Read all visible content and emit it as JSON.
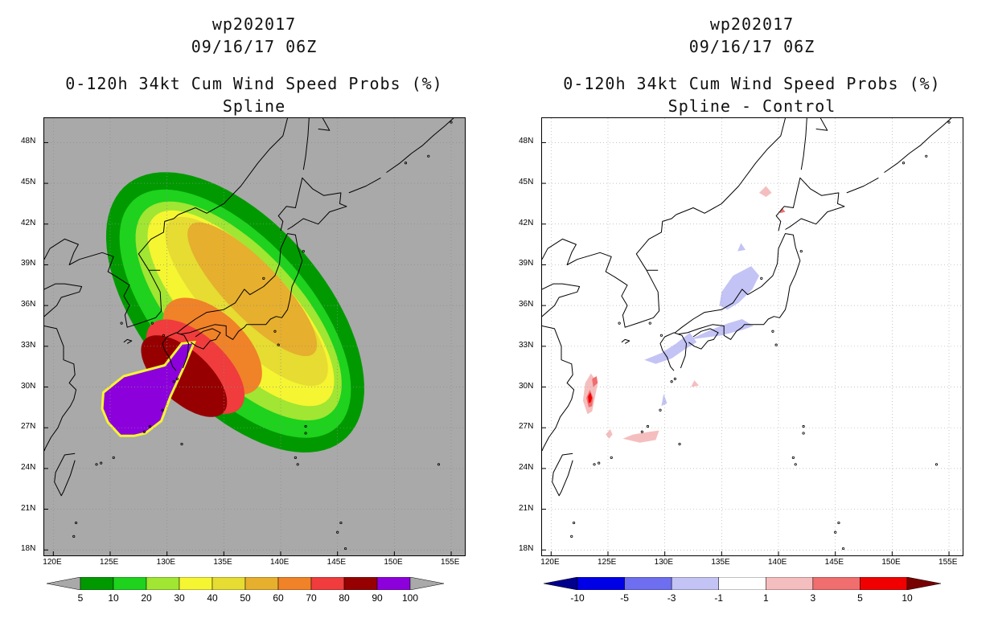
{
  "chart_data": [
    {
      "type": "heatmap",
      "title_lines": [
        "wp202017",
        "09/16/17 06Z",
        "0-120h 34kt Cum Wind Speed Probs (%)",
        "Spline"
      ],
      "x_ticks": [
        "120E",
        "125E",
        "130E",
        "135E",
        "140E",
        "145E",
        "150E",
        "155E"
      ],
      "y_ticks": [
        "48N",
        "45N",
        "42N",
        "39N",
        "36N",
        "33N",
        "30N",
        "27N",
        "24N",
        "21N",
        "18N"
      ],
      "x_values": [
        120,
        125,
        130,
        135,
        140,
        145,
        150,
        155
      ],
      "y_values": [
        48,
        45,
        42,
        39,
        36,
        33,
        30,
        27,
        24,
        21,
        18
      ],
      "xlim": [
        119.2,
        156.2
      ],
      "ylim": [
        17.6,
        49.8
      ],
      "background": "#a9a9a9",
      "colorbar": {
        "labels": [
          "5",
          "10",
          "20",
          "30",
          "40",
          "50",
          "60",
          "70",
          "80",
          "90",
          "100"
        ],
        "colors": [
          "#009a00",
          "#1ed21e",
          "#a0e632",
          "#f5f532",
          "#e6dc32",
          "#e6af2d",
          "#f08228",
          "#f03c3c",
          "#960000",
          "#8c00dc"
        ],
        "end_colors": [
          "#a9a9a9",
          "#a9a9a9"
        ]
      },
      "contours": [
        {
          "level": 5,
          "color": "#009a00",
          "ellipse": [
            136,
            35.5,
            7.3,
            13.5,
            50
          ]
        },
        {
          "level": 10,
          "color": "#1ed21e",
          "ellipse": [
            136,
            35.4,
            6.0,
            12.3,
            50
          ]
        },
        {
          "level": 20,
          "color": "#a0e632",
          "ellipse": [
            136.3,
            35.6,
            4.9,
            11.1,
            50
          ]
        },
        {
          "level": 30,
          "color": "#f5f532",
          "ellipse": [
            136.5,
            35.8,
            3.9,
            10.2,
            50
          ]
        },
        {
          "level": 40,
          "color": "#e6dc32",
          "ellipse": [
            137,
            36.3,
            3.0,
            9.0,
            50
          ]
        },
        {
          "level": 50,
          "color": "#e6af2d",
          "ellipse": [
            137.5,
            37.2,
            2.2,
            7.2,
            50
          ]
        },
        {
          "level": 60,
          "color": "#f08228",
          "ellipse": [
            134,
            33,
            2.6,
            5.0,
            55
          ]
        },
        {
          "level": 70,
          "color": "#f03c3c",
          "ellipse": [
            132.5,
            31.5,
            2.4,
            5.0,
            55
          ]
        },
        {
          "level": 80,
          "color": "#960000",
          "ellipse": [
            131.5,
            30.8,
            2.0,
            4.4,
            55
          ]
        }
      ],
      "core_region": {
        "level": 100,
        "color": "#8c00dc",
        "edge_color": "#f5f532",
        "points": [
          [
            125.3,
            30.2
          ],
          [
            126.2,
            30.8
          ],
          [
            129.8,
            31.6
          ],
          [
            131.3,
            33.2
          ],
          [
            132.4,
            33.3
          ],
          [
            131.5,
            31.5
          ],
          [
            130.3,
            29.3
          ],
          [
            129.5,
            27.5
          ],
          [
            128.1,
            26.6
          ],
          [
            127.1,
            26.4
          ],
          [
            125.9,
            26.4
          ],
          [
            124.8,
            27.4
          ],
          [
            124.3,
            28.4
          ],
          [
            124.4,
            29.6
          ]
        ]
      }
    },
    {
      "type": "heatmap",
      "title_lines": [
        "wp202017",
        "09/16/17 06Z",
        "0-120h 34kt Cum Wind Speed Probs (%)",
        "Spline - Control"
      ],
      "x_ticks": [
        "120E",
        "125E",
        "130E",
        "135E",
        "140E",
        "145E",
        "150E",
        "155E"
      ],
      "y_ticks": [
        "48N",
        "45N",
        "42N",
        "39N",
        "36N",
        "33N",
        "30N",
        "27N",
        "24N",
        "21N",
        "18N"
      ],
      "x_values": [
        120,
        125,
        130,
        135,
        140,
        145,
        150,
        155
      ],
      "y_values": [
        48,
        45,
        42,
        39,
        36,
        33,
        30,
        27,
        24,
        21,
        18
      ],
      "xlim": [
        119.2,
        156.2
      ],
      "ylim": [
        17.6,
        49.8
      ],
      "background": "#ffffff",
      "colorbar": {
        "labels": [
          "-10",
          "-5",
          "-3",
          "-1",
          "1",
          "3",
          "5",
          "10"
        ],
        "colors": [
          "#0000e6",
          "#6e6ef0",
          "#c3c3f5",
          "#ffffff",
          "#f5bebe",
          "#f06e6e",
          "#f00000"
        ],
        "end_colors": [
          "#00008c",
          "#780000"
        ]
      },
      "anomalies": [
        {
          "level": -1,
          "color": "#c3c3f5",
          "points": [
            [
              134.8,
              36.0
            ],
            [
              135.0,
              37.0
            ],
            [
              136.0,
              38.2
            ],
            [
              137.6,
              38.9
            ],
            [
              138.3,
              38.2
            ],
            [
              137.7,
              37.2
            ],
            [
              136.5,
              36.2
            ],
            [
              135.5,
              35.7
            ]
          ]
        },
        {
          "level": -1,
          "color": "#c3c3f5",
          "points": [
            [
              128.2,
              32.0
            ],
            [
              129.7,
              32.5
            ],
            [
              131.0,
              33.2
            ],
            [
              132.2,
              34.0
            ],
            [
              132.8,
              33.3
            ],
            [
              131.8,
              32.8
            ],
            [
              130.6,
              32.1
            ],
            [
              129.2,
              31.7
            ]
          ]
        },
        {
          "level": -1,
          "color": "#c3c3f5",
          "points": [
            [
              132.2,
              33.5
            ],
            [
              134.0,
              34.2
            ],
            [
              135.6,
              34.7
            ],
            [
              136.8,
              35.0
            ],
            [
              137.8,
              34.5
            ],
            [
              136.8,
              34.2
            ],
            [
              135.0,
              33.8
            ]
          ]
        },
        {
          "level": -1,
          "color": "#c3c3f5",
          "points": [
            [
              136.4,
              40.0
            ],
            [
              136.7,
              40.6
            ],
            [
              137.1,
              40.1
            ]
          ]
        },
        {
          "level": -1,
          "color": "#c3c3f5",
          "points": [
            [
              129.7,
              28.6
            ],
            [
              129.9,
              29.5
            ],
            [
              130.2,
              28.8
            ]
          ]
        },
        {
          "level": 1,
          "color": "#f5bebe",
          "points": [
            [
              123.2,
              28.0
            ],
            [
              122.8,
              29.0
            ],
            [
              123.0,
              30.3
            ],
            [
              123.5,
              31.0
            ],
            [
              124.1,
              30.3
            ],
            [
              123.8,
              29.0
            ],
            [
              123.6,
              28.2
            ]
          ]
        },
        {
          "level": 3,
          "color": "#f06e6e",
          "points": [
            [
              123.3,
              28.5
            ],
            [
              123.1,
              29.2
            ],
            [
              123.4,
              29.8
            ],
            [
              123.7,
              29.2
            ],
            [
              123.6,
              28.6
            ]
          ]
        },
        {
          "level": 3,
          "color": "#f06e6e",
          "points": [
            [
              123.7,
              30.0
            ],
            [
              123.6,
              30.6
            ],
            [
              124.0,
              30.8
            ],
            [
              124.1,
              30.3
            ]
          ]
        },
        {
          "level": 5,
          "color": "#f00000",
          "points": [
            [
              123.3,
              28.8
            ],
            [
              123.25,
              29.3
            ],
            [
              123.45,
              29.6
            ],
            [
              123.6,
              29.2
            ],
            [
              123.5,
              28.9
            ]
          ]
        },
        {
          "level": 1,
          "color": "#f5bebe",
          "points": [
            [
              126.3,
              26.2
            ],
            [
              127.2,
              26.5
            ],
            [
              128.6,
              26.7
            ],
            [
              129.5,
              26.8
            ],
            [
              129.2,
              26.1
            ],
            [
              127.8,
              25.9
            ]
          ]
        },
        {
          "level": 1,
          "color": "#f5bebe",
          "points": [
            [
              124.8,
              26.5
            ],
            [
              125.2,
              26.9
            ],
            [
              125.4,
              26.5
            ],
            [
              125.1,
              26.2
            ]
          ]
        },
        {
          "level": 1,
          "color": "#f5bebe",
          "points": [
            [
              138.3,
              44.3
            ],
            [
              138.9,
              44.8
            ],
            [
              139.4,
              44.3
            ],
            [
              138.9,
              44.0
            ]
          ]
        },
        {
          "level": 1,
          "color": "#f5bebe",
          "points": [
            [
              132.3,
              30.0
            ],
            [
              132.6,
              30.5
            ],
            [
              133.0,
              30.1
            ]
          ]
        },
        {
          "level": 3,
          "color": "#f06e6e",
          "points": [
            [
              140.1,
              42.8
            ],
            [
              140.3,
              43.2
            ],
            [
              140.6,
              42.9
            ]
          ]
        }
      ]
    }
  ]
}
